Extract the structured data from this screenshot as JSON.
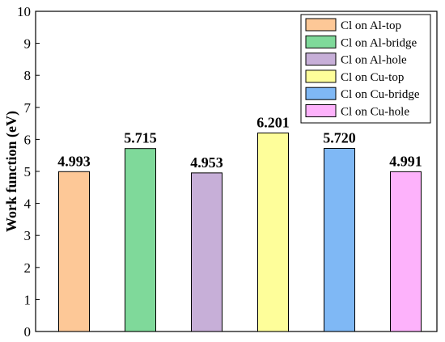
{
  "chart_data": {
    "type": "bar",
    "title": "",
    "xlabel": "",
    "ylabel": "Work function (eV)",
    "ylim": [
      0,
      10
    ],
    "yticks": [
      0,
      1,
      2,
      3,
      4,
      5,
      6,
      7,
      8,
      9,
      10
    ],
    "grid": false,
    "legend_position": "top-right",
    "series": [
      {
        "name": "Cl on Al-top",
        "value": 4.993,
        "label": "4.993",
        "color": "#FDC897"
      },
      {
        "name": "Cl on Al-bridge",
        "value": 5.715,
        "label": "5.715",
        "color": "#7FD99A"
      },
      {
        "name": "Cl on Al-hole",
        "value": 4.953,
        "label": "4.953",
        "color": "#C7AFD8"
      },
      {
        "name": "Cl on Cu-top",
        "value": 6.201,
        "label": "6.201",
        "color": "#FEFE9A"
      },
      {
        "name": "Cl on Cu-bridge",
        "value": 5.72,
        "label": "5.720",
        "color": "#7FB8F5"
      },
      {
        "name": "Cl on Cu-hole",
        "value": 4.991,
        "label": "4.991",
        "color": "#FDB2FB"
      }
    ]
  }
}
